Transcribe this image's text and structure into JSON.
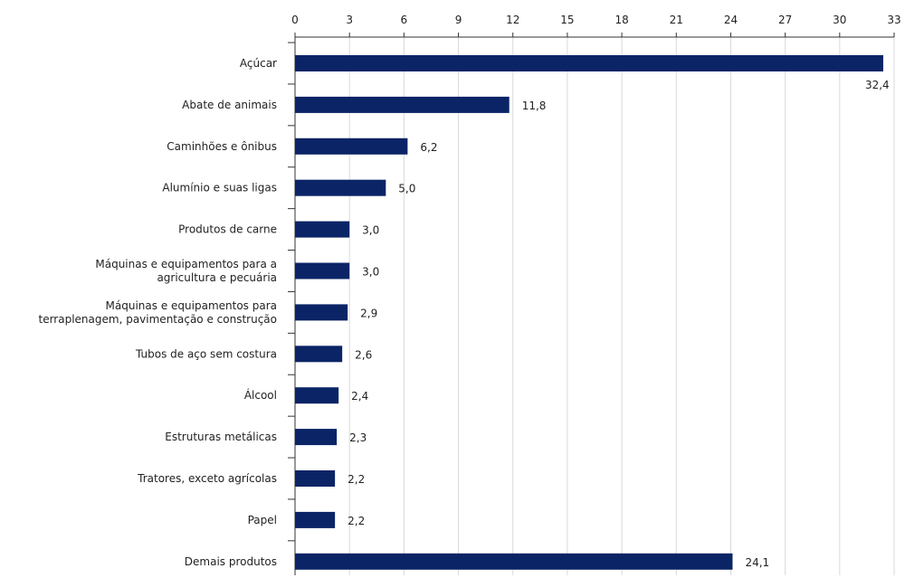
{
  "chart_data": {
    "type": "bar",
    "orientation": "horizontal",
    "categories": [
      "Açúcar",
      "Abate de animais",
      "Caminhões e ônibus",
      "Alumínio e suas ligas",
      "Produtos de carne",
      "Máquinas e equipamentos para a|agricultura e pecuária",
      "Máquinas e equipamentos para|terraplenagem, pavimentação e construção",
      "Tubos de aço sem costura",
      "Álcool",
      "Estruturas metálicas",
      "Tratores, exceto agrícolas",
      "Papel",
      "Demais produtos"
    ],
    "values": [
      32.4,
      11.8,
      6.2,
      5.0,
      3.0,
      3.0,
      2.9,
      2.6,
      2.4,
      2.3,
      2.2,
      2.2,
      24.1
    ],
    "value_labels": [
      "32,4",
      "11,8",
      "6,2",
      "5,0",
      "3,0",
      "3,0",
      "2,9",
      "2,6",
      "2,4",
      "2,3",
      "2,2",
      "2,2",
      "24,1"
    ],
    "x_ticks": [
      0,
      3,
      6,
      9,
      12,
      15,
      18,
      21,
      24,
      27,
      30,
      33
    ],
    "xlim": [
      0,
      33
    ],
    "axis_position": "top",
    "grid": true,
    "bar_color": "#0b2466",
    "grid_color": "#d9d9d9",
    "axis_color": "#333333"
  }
}
